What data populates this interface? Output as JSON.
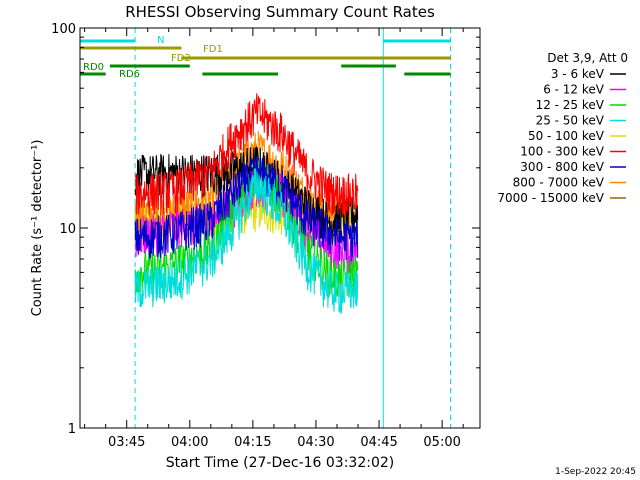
{
  "chart_data": {
    "type": "line",
    "title": "RHESSI Observing Summary Count Rates",
    "xlabel": "Start Time (27-Dec-16 03:32:02)",
    "ylabel": "Count Rate (s⁻¹ detector⁻¹)",
    "y_scale": "log",
    "ylim": [
      1,
      100
    ],
    "xlim_minutes": [
      3.9,
      99
    ],
    "x_ticks": [
      "03:45",
      "04:00",
      "04:15",
      "04:30",
      "04:45",
      "05:00"
    ],
    "y_ticks": [
      "1",
      "10",
      "100"
    ],
    "legend_title": "Det 3,9, Att 0",
    "legend_position": "right",
    "timestamp": "1-Sep-2022 20:45",
    "series": [
      {
        "name": "3 - 6 keV",
        "color": "#000000",
        "points": [
          [
            17,
            18.5
          ],
          [
            26,
            19
          ],
          [
            35,
            19
          ],
          [
            40,
            19.5
          ],
          [
            46,
            21
          ],
          [
            52,
            17
          ],
          [
            58,
            13
          ],
          [
            63,
            11
          ],
          [
            66,
            11
          ],
          [
            70,
            12
          ]
        ]
      },
      {
        "name": "6 - 12 keV",
        "color": "#ff00ff",
        "points": [
          [
            17,
            9
          ],
          [
            26,
            10
          ],
          [
            35,
            11
          ],
          [
            40,
            13
          ],
          [
            46,
            17
          ],
          [
            52,
            15
          ],
          [
            58,
            10
          ],
          [
            63,
            8
          ],
          [
            66,
            7.5
          ],
          [
            70,
            8
          ]
        ]
      },
      {
        "name": "12 - 25 keV",
        "color": "#00dd00",
        "points": [
          [
            17,
            6
          ],
          [
            26,
            6.5
          ],
          [
            35,
            8
          ],
          [
            40,
            12
          ],
          [
            46,
            19
          ],
          [
            52,
            14
          ],
          [
            58,
            8
          ],
          [
            63,
            6
          ],
          [
            66,
            5.5
          ],
          [
            70,
            6
          ]
        ]
      },
      {
        "name": "25 - 50 keV",
        "color": "#00dddd",
        "points": [
          [
            17,
            5
          ],
          [
            26,
            5.5
          ],
          [
            35,
            7
          ],
          [
            40,
            10
          ],
          [
            46,
            17
          ],
          [
            52,
            12
          ],
          [
            58,
            6.5
          ],
          [
            63,
            5
          ],
          [
            66,
            4.8
          ],
          [
            70,
            5
          ]
        ]
      },
      {
        "name": "50 - 100 keV",
        "color": "#dddd00",
        "points": [
          [
            17,
            11
          ],
          [
            26,
            11
          ],
          [
            35,
            11.5
          ],
          [
            40,
            12
          ],
          [
            46,
            12.5
          ],
          [
            52,
            12
          ],
          [
            58,
            11.5
          ],
          [
            63,
            11
          ],
          [
            66,
            11
          ],
          [
            70,
            11
          ]
        ]
      },
      {
        "name": "100 - 300 keV",
        "color": "#ff0000",
        "points": [
          [
            17,
            15
          ],
          [
            26,
            15.5
          ],
          [
            35,
            19
          ],
          [
            40,
            28
          ],
          [
            46,
            38
          ],
          [
            52,
            30
          ],
          [
            58,
            19
          ],
          [
            63,
            15.5
          ],
          [
            66,
            15
          ],
          [
            70,
            15
          ]
        ]
      },
      {
        "name": "300 - 800 keV",
        "color": "#0000cc",
        "points": [
          [
            17,
            9
          ],
          [
            26,
            9.5
          ],
          [
            35,
            11
          ],
          [
            40,
            15
          ],
          [
            46,
            19
          ],
          [
            52,
            16
          ],
          [
            58,
            11
          ],
          [
            63,
            9.5
          ],
          [
            66,
            9
          ],
          [
            70,
            9
          ]
        ]
      },
      {
        "name": "800 - 7000 keV",
        "color": "#ff8800",
        "points": [
          [
            17,
            12
          ],
          [
            26,
            12
          ],
          [
            35,
            14
          ],
          [
            40,
            19
          ],
          [
            46,
            25
          ],
          [
            52,
            20
          ],
          [
            58,
            14
          ],
          [
            63,
            12
          ],
          [
            66,
            12
          ],
          [
            70,
            12
          ]
        ]
      },
      {
        "name": "7000 - 15000 keV",
        "color": "#996600",
        "points": []
      }
    ],
    "flags": [
      {
        "label": "N",
        "color": "#00dddd",
        "segments": [
          [
            3.9,
            17
          ],
          [
            76,
            92
          ]
        ]
      },
      {
        "label": "FD1",
        "color": "#999900",
        "segments": [
          [
            3.9,
            28
          ]
        ]
      },
      {
        "label": "FD2",
        "color": "#999900",
        "segments": [
          [
            28,
            92
          ]
        ]
      },
      {
        "label": "RD0",
        "color": "#008800",
        "segments": [
          [
            11,
            30
          ],
          [
            66,
            79
          ]
        ]
      },
      {
        "label": "RD6",
        "color": "#008800",
        "segments": [
          [
            3.9,
            10
          ],
          [
            33,
            51
          ],
          [
            81,
            92
          ]
        ]
      }
    ],
    "vlines": [
      {
        "x": 3.9,
        "color": "#00dddd",
        "style": "solid"
      },
      {
        "x": 17,
        "color": "#00dddd",
        "style": "dashed"
      },
      {
        "x": 76,
        "color": "#00dddd",
        "style": "solid"
      },
      {
        "x": 92,
        "color": "#00dddd",
        "style": "dashed"
      }
    ]
  }
}
